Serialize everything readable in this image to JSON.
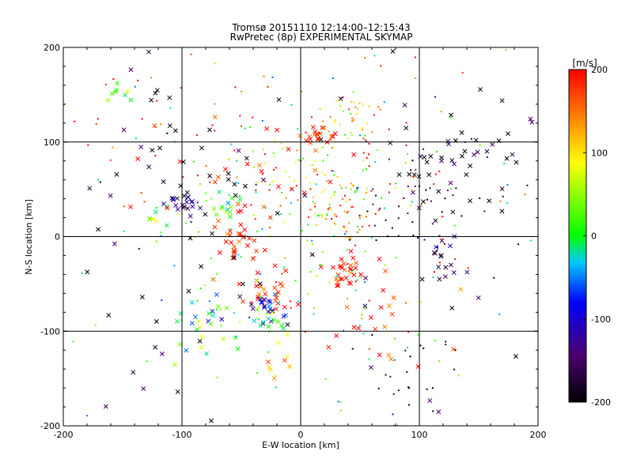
{
  "chart_data": {
    "type": "scatter",
    "title": "Tromsø 20151110 12:14:00–12:15:43",
    "subtitle": "RwPretec (8p) EXPERIMENTAL SKYMAP",
    "xlabel": "E-W location [km]",
    "ylabel": "N-S location [km]",
    "xlim": [
      -200,
      200
    ],
    "ylim": [
      -200,
      200
    ],
    "x_ticks": [
      -200,
      -100,
      0,
      100,
      200
    ],
    "y_ticks": [
      -200,
      -100,
      0,
      100,
      200
    ],
    "grid_lines_x": [
      -100,
      0,
      100
    ],
    "grid_lines_y": [
      -100,
      0,
      100
    ],
    "marker_types": [
      "x",
      "dot"
    ],
    "colorbar": {
      "label": "[m/s]",
      "range": [
        -200,
        200
      ],
      "ticks": [
        200,
        100,
        0,
        -100,
        -200
      ],
      "colormap": [
        "#000000",
        "#4b006e",
        "#0000ff",
        "#00c8ff",
        "#00ff00",
        "#ffff00",
        "#ff7f00",
        "#ff0000"
      ]
    },
    "clusters": [
      {
        "x": -97,
        "y": 33,
        "spread": 8,
        "value": -150,
        "marker": "x",
        "count": 24
      },
      {
        "x": -65,
        "y": 32,
        "spread": 7,
        "value": 20,
        "marker": "x",
        "count": 16
      },
      {
        "x": -118,
        "y": 26,
        "spread": 8,
        "value": 40,
        "marker": "x",
        "count": 10
      },
      {
        "x": -150,
        "y": 150,
        "spread": 6,
        "value": 30,
        "marker": "x",
        "count": 8
      },
      {
        "x": -55,
        "y": -7,
        "spread": 9,
        "value": 190,
        "marker": "x",
        "count": 26
      },
      {
        "x": -25,
        "y": -55,
        "spread": 10,
        "value": 190,
        "marker": "x",
        "count": 30
      },
      {
        "x": -30,
        "y": -75,
        "spread": 10,
        "value": -100,
        "marker": "x",
        "count": 22
      },
      {
        "x": -25,
        "y": -90,
        "spread": 8,
        "value": 30,
        "marker": "x",
        "count": 14
      },
      {
        "x": 40,
        "y": -37,
        "spread": 9,
        "value": 195,
        "marker": "x",
        "count": 28
      },
      {
        "x": 17,
        "y": 107,
        "spread": 6,
        "value": 195,
        "marker": "x",
        "count": 22
      },
      {
        "x": 45,
        "y": 130,
        "spread": 14,
        "value": 100,
        "marker": "dot",
        "count": 30
      },
      {
        "x": 35,
        "y": 28,
        "spread": 15,
        "value": 150,
        "marker": "dot",
        "count": 40
      },
      {
        "x": 15,
        "y": 55,
        "spread": 25,
        "value": 60,
        "marker": "dot",
        "count": 50
      },
      {
        "x": 130,
        "y": 75,
        "spread": 30,
        "value": -200,
        "marker": "x",
        "count": 55
      },
      {
        "x": 90,
        "y": 30,
        "spread": 25,
        "value": -180,
        "marker": "dot",
        "count": 40
      },
      {
        "x": 120,
        "y": -20,
        "spread": 10,
        "value": -140,
        "marker": "x",
        "count": 14
      },
      {
        "x": 90,
        "y": -150,
        "spread": 25,
        "value": -200,
        "marker": "dot",
        "count": 24
      },
      {
        "x": -20,
        "y": -140,
        "spread": 6,
        "value": 130,
        "marker": "x",
        "count": 8
      },
      {
        "x": -90,
        "y": -80,
        "spread": 15,
        "value": -60,
        "marker": "x",
        "count": 14
      },
      {
        "x": -60,
        "y": -110,
        "spread": 25,
        "value": 40,
        "marker": "x",
        "count": 16
      },
      {
        "x": -130,
        "y": 130,
        "spread": 40,
        "value": 190,
        "marker": "dot",
        "count": 30
      },
      {
        "x": -100,
        "y": 80,
        "spread": 35,
        "value": -200,
        "marker": "x",
        "count": 26
      },
      {
        "x": 40,
        "y": 80,
        "spread": 60,
        "value": 190,
        "marker": "dot",
        "count": 80
      },
      {
        "x": 60,
        "y": -90,
        "spread": 30,
        "value": 190,
        "marker": "x",
        "count": 30
      },
      {
        "x": -40,
        "y": 60,
        "spread": 45,
        "value": 190,
        "marker": "x",
        "count": 40
      },
      {
        "x": 10,
        "y": -10,
        "spread": 50,
        "value": 20,
        "marker": "dot",
        "count": 50
      },
      {
        "x": 0,
        "y": 0,
        "spread": 110,
        "value": 0,
        "marker": "dot",
        "count": 140
      },
      {
        "x": 0,
        "y": 0,
        "spread": 120,
        "value": -200,
        "marker": "x",
        "count": 70
      }
    ]
  }
}
